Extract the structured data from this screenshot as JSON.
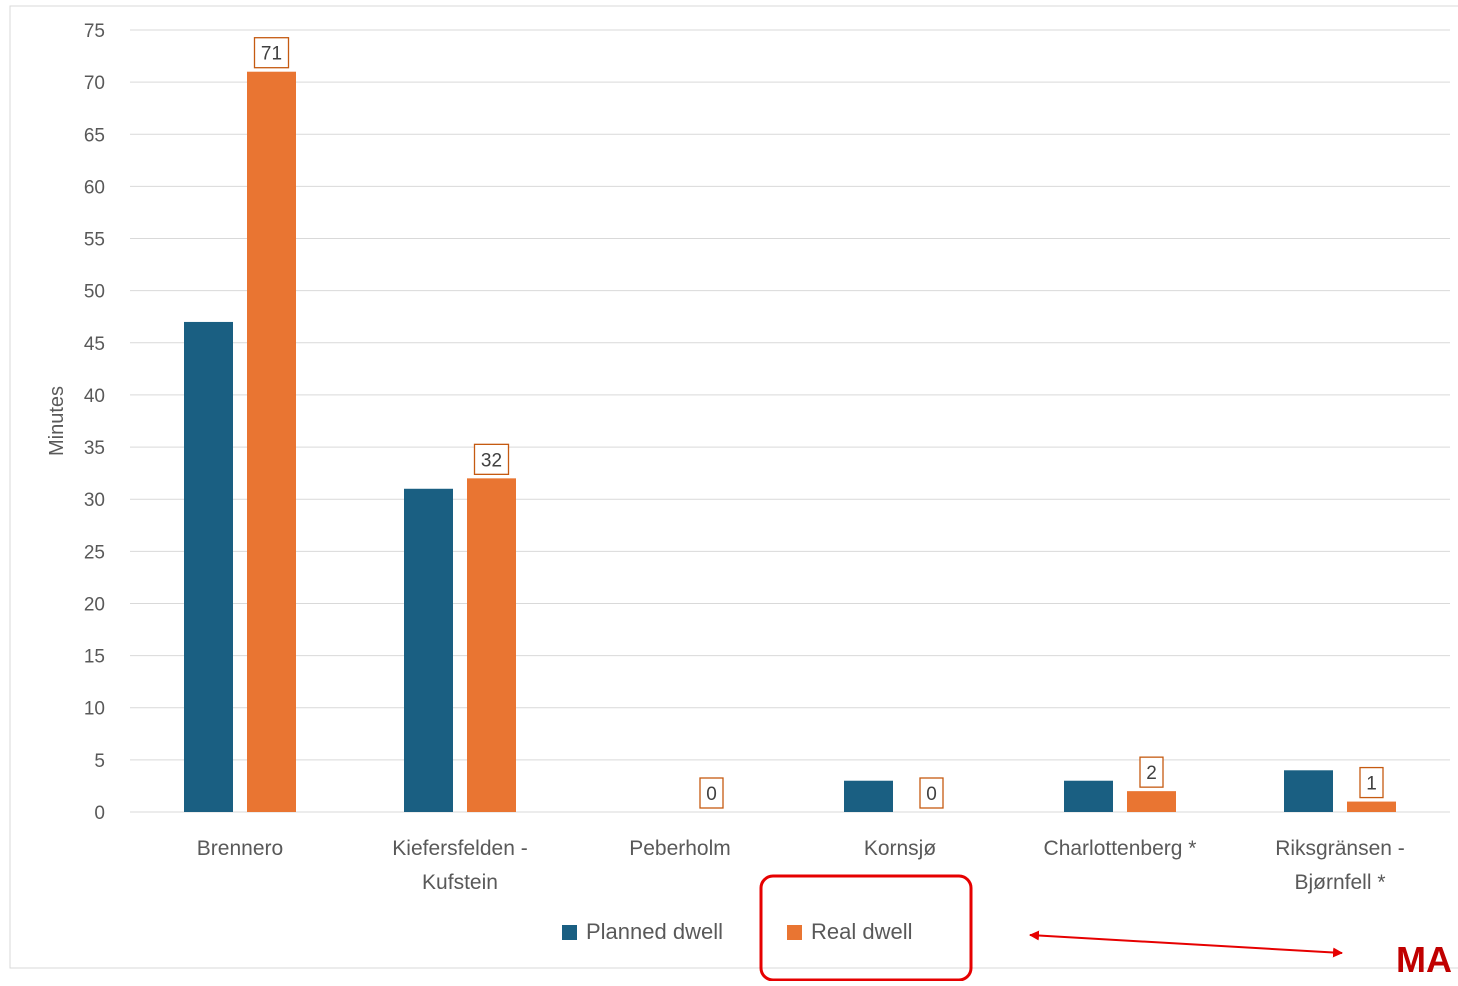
{
  "chart_data": {
    "type": "bar",
    "title": "",
    "xlabel": "",
    "ylabel": "Minutes",
    "ylim": [
      0,
      75
    ],
    "yticks": [
      0,
      5,
      10,
      15,
      20,
      25,
      30,
      35,
      40,
      45,
      50,
      55,
      60,
      65,
      70,
      75
    ],
    "grid": true,
    "legend_position": "bottom",
    "categories": [
      [
        "Brennero"
      ],
      [
        "Kiefersfelden -",
        "Kufstein"
      ],
      [
        "Peberholm"
      ],
      [
        "Kornsjø"
      ],
      [
        "Charlottenberg *"
      ],
      [
        "Riksgränsen -",
        "Bjørnfell *"
      ]
    ],
    "series": [
      {
        "name": "Planned dwell",
        "color": "#1a5f82",
        "values": [
          47,
          31,
          0,
          3,
          3,
          4
        ],
        "labels": []
      },
      {
        "name": "Real dwell",
        "color": "#e97532",
        "values": [
          71,
          32,
          0,
          0,
          2,
          1
        ],
        "labels": [
          "71",
          "32",
          "0",
          "0",
          "2",
          "1"
        ]
      }
    ]
  },
  "annotations": {
    "highlight_color": "#e60000",
    "arrow_color": "#e60000",
    "cut_text": "MA",
    "cut_text_color": "#c00000"
  }
}
